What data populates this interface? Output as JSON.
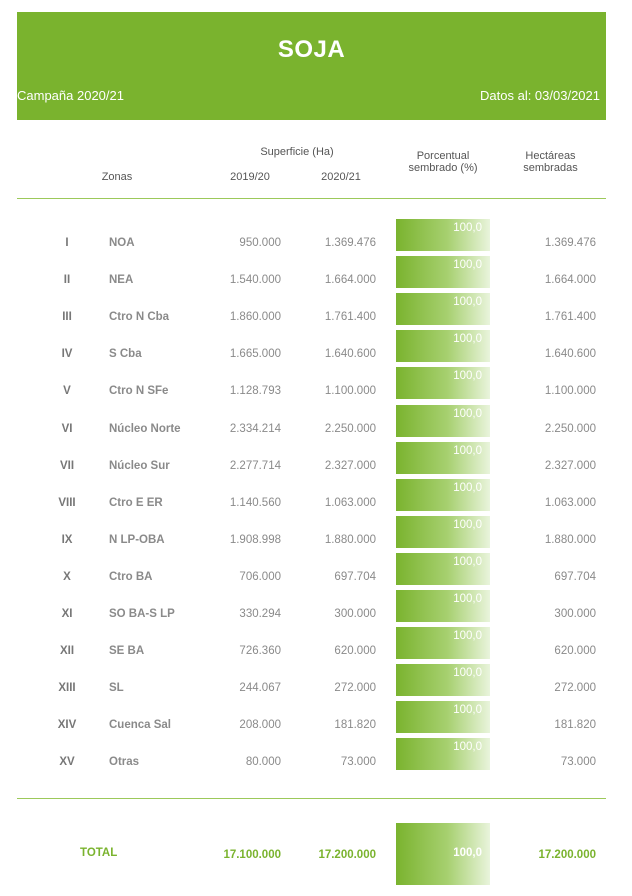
{
  "title": "SOJA",
  "campaign": "Campaña 2020/21",
  "date_label": "Datos al: 03/03/2021",
  "headers": {
    "zonas": "Zonas",
    "superficie": "Superficie (Ha)",
    "y1": "2019/20",
    "y2": "2020/21",
    "porcentual_1": "Porcentual",
    "porcentual_2": "sembrado (%)",
    "hectareas_1": "Hectáreas",
    "hectareas_2": "sembradas"
  },
  "rows": [
    {
      "num": "I",
      "zona": "NOA",
      "y2019": "950.000",
      "y2020": "1.369.476",
      "pct": "100,0",
      "sembradas": "1.369.476"
    },
    {
      "num": "II",
      "zona": "NEA",
      "y2019": "1.540.000",
      "y2020": "1.664.000",
      "pct": "100,0",
      "sembradas": "1.664.000"
    },
    {
      "num": "III",
      "zona": "Ctro N Cba",
      "y2019": "1.860.000",
      "y2020": "1.761.400",
      "pct": "100,0",
      "sembradas": "1.761.400"
    },
    {
      "num": "IV",
      "zona": "S Cba",
      "y2019": "1.665.000",
      "y2020": "1.640.600",
      "pct": "100,0",
      "sembradas": "1.640.600"
    },
    {
      "num": "V",
      "zona": "Ctro N SFe",
      "y2019": "1.128.793",
      "y2020": "1.100.000",
      "pct": "100,0",
      "sembradas": "1.100.000"
    },
    {
      "num": "VI",
      "zona": "Núcleo Norte",
      "y2019": "2.334.214",
      "y2020": "2.250.000",
      "pct": "100,0",
      "sembradas": "2.250.000"
    },
    {
      "num": "VII",
      "zona": "Núcleo Sur",
      "y2019": "2.277.714",
      "y2020": "2.327.000",
      "pct": "100,0",
      "sembradas": "2.327.000"
    },
    {
      "num": "VIII",
      "zona": "Ctro E ER",
      "y2019": "1.140.560",
      "y2020": "1.063.000",
      "pct": "100,0",
      "sembradas": "1.063.000"
    },
    {
      "num": "IX",
      "zona": "N LP-OBA",
      "y2019": "1.908.998",
      "y2020": "1.880.000",
      "pct": "100,0",
      "sembradas": "1.880.000"
    },
    {
      "num": "X",
      "zona": "Ctro BA",
      "y2019": "706.000",
      "y2020": "697.704",
      "pct": "100,0",
      "sembradas": "697.704"
    },
    {
      "num": "XI",
      "zona": "SO BA-S LP",
      "y2019": "330.294",
      "y2020": "300.000",
      "pct": "100,0",
      "sembradas": "300.000"
    },
    {
      "num": "XII",
      "zona": "SE BA",
      "y2019": "726.360",
      "y2020": "620.000",
      "pct": "100,0",
      "sembradas": "620.000"
    },
    {
      "num": "XIII",
      "zona": "SL",
      "y2019": "244.067",
      "y2020": "272.000",
      "pct": "100,0",
      "sembradas": "272.000"
    },
    {
      "num": "XIV",
      "zona": "Cuenca Sal",
      "y2019": "208.000",
      "y2020": "181.820",
      "pct": "100,0",
      "sembradas": "181.820"
    },
    {
      "num": "XV",
      "zona": "Otras",
      "y2019": "80.000",
      "y2020": "73.000",
      "pct": "100,0",
      "sembradas": "73.000"
    }
  ],
  "total": {
    "label": "TOTAL",
    "y2019": "17.100.000",
    "y2020": "17.200.000",
    "pct": "100,0",
    "sembradas": "17.200.000"
  },
  "colors": {
    "accent": "#7ab32e"
  }
}
